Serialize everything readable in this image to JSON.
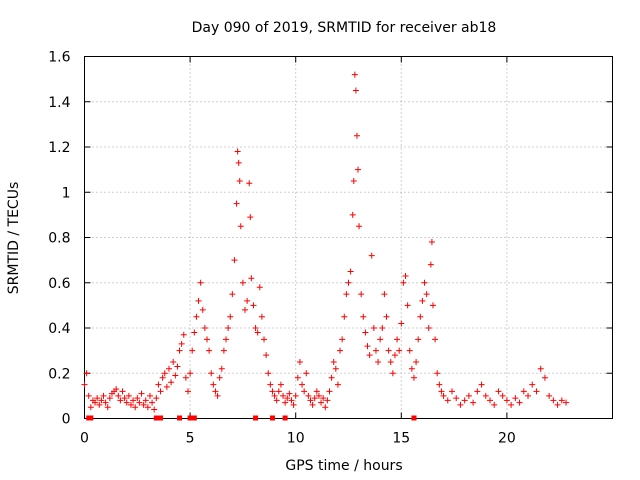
{
  "chart_data": {
    "type": "scatter",
    "title": "Day 090 of 2019, SRMTID for receiver ab18",
    "xlabel": "GPS time / hours",
    "ylabel": "SRMTID / TECUs",
    "xlim": [
      0,
      25
    ],
    "ylim": [
      0,
      1.6
    ],
    "grid": true,
    "marker": "+",
    "color": "#ff0000",
    "x_ticks": [
      0,
      5,
      10,
      15,
      20
    ],
    "x_tick_labels": [
      "0",
      "5",
      "10",
      "15",
      "20"
    ],
    "y_ticks": [
      0,
      0.2,
      0.4,
      0.6,
      0.8,
      1.0,
      1.2,
      1.4,
      1.6
    ],
    "y_tick_labels": [
      "0",
      "0.2",
      "0.4",
      "0.6",
      "0.8",
      "1",
      "1.2",
      "1.4",
      "1.6"
    ],
    "series": [
      {
        "name": "SRMTID",
        "points": [
          [
            0.0,
            0.15
          ],
          [
            0.1,
            0.2
          ],
          [
            0.2,
            0.1
          ],
          [
            0.3,
            0.05
          ],
          [
            0.4,
            0.08
          ],
          [
            0.5,
            0.07
          ],
          [
            0.6,
            0.09
          ],
          [
            0.7,
            0.06
          ],
          [
            0.8,
            0.08
          ],
          [
            0.9,
            0.1
          ],
          [
            1.0,
            0.07
          ],
          [
            1.1,
            0.05
          ],
          [
            1.2,
            0.09
          ],
          [
            1.3,
            0.11
          ],
          [
            1.4,
            0.12
          ],
          [
            1.5,
            0.13
          ],
          [
            1.6,
            0.1
          ],
          [
            1.7,
            0.08
          ],
          [
            1.8,
            0.12
          ],
          [
            1.9,
            0.09
          ],
          [
            2.0,
            0.07
          ],
          [
            2.1,
            0.1
          ],
          [
            2.2,
            0.06
          ],
          [
            2.3,
            0.08
          ],
          [
            2.4,
            0.05
          ],
          [
            2.5,
            0.09
          ],
          [
            2.6,
            0.07
          ],
          [
            2.7,
            0.11
          ],
          [
            2.8,
            0.06
          ],
          [
            2.9,
            0.08
          ],
          [
            3.0,
            0.05
          ],
          [
            3.1,
            0.1
          ],
          [
            3.2,
            0.07
          ],
          [
            3.3,
            0.04
          ],
          [
            3.4,
            0.09
          ],
          [
            3.5,
            0.15
          ],
          [
            3.6,
            0.12
          ],
          [
            3.7,
            0.18
          ],
          [
            3.8,
            0.2
          ],
          [
            3.9,
            0.14
          ],
          [
            4.0,
            0.22
          ],
          [
            4.1,
            0.16
          ],
          [
            4.2,
            0.25
          ],
          [
            4.3,
            0.19
          ],
          [
            4.4,
            0.23
          ],
          [
            4.5,
            0.3
          ],
          [
            4.6,
            0.33
          ],
          [
            4.7,
            0.37
          ],
          [
            4.8,
            0.18
          ],
          [
            4.9,
            0.12
          ],
          [
            5.0,
            0.2
          ],
          [
            5.1,
            0.3
          ],
          [
            5.2,
            0.38
          ],
          [
            5.3,
            0.45
          ],
          [
            5.4,
            0.52
          ],
          [
            5.5,
            0.6
          ],
          [
            5.6,
            0.48
          ],
          [
            5.7,
            0.4
          ],
          [
            5.8,
            0.35
          ],
          [
            5.9,
            0.3
          ],
          [
            6.0,
            0.2
          ],
          [
            6.1,
            0.15
          ],
          [
            6.2,
            0.12
          ],
          [
            6.3,
            0.1
          ],
          [
            6.4,
            0.18
          ],
          [
            6.5,
            0.22
          ],
          [
            6.6,
            0.3
          ],
          [
            6.7,
            0.35
          ],
          [
            6.8,
            0.4
          ],
          [
            6.9,
            0.45
          ],
          [
            7.0,
            0.55
          ],
          [
            7.1,
            0.7
          ],
          [
            7.2,
            0.95
          ],
          [
            7.25,
            1.18
          ],
          [
            7.3,
            1.13
          ],
          [
            7.35,
            1.05
          ],
          [
            7.4,
            0.85
          ],
          [
            7.5,
            0.6
          ],
          [
            7.6,
            0.48
          ],
          [
            7.7,
            0.52
          ],
          [
            7.8,
            1.04
          ],
          [
            7.85,
            0.89
          ],
          [
            7.9,
            0.62
          ],
          [
            8.0,
            0.5
          ],
          [
            8.1,
            0.4
          ],
          [
            8.2,
            0.38
          ],
          [
            8.3,
            0.58
          ],
          [
            8.4,
            0.45
          ],
          [
            8.5,
            0.35
          ],
          [
            8.6,
            0.28
          ],
          [
            8.7,
            0.2
          ],
          [
            8.8,
            0.15
          ],
          [
            8.9,
            0.12
          ],
          [
            9.0,
            0.1
          ],
          [
            9.1,
            0.08
          ],
          [
            9.2,
            0.12
          ],
          [
            9.3,
            0.15
          ],
          [
            9.4,
            0.1
          ],
          [
            9.5,
            0.07
          ],
          [
            9.6,
            0.09
          ],
          [
            9.7,
            0.11
          ],
          [
            9.8,
            0.08
          ],
          [
            9.9,
            0.06
          ],
          [
            10.0,
            0.1
          ],
          [
            10.1,
            0.18
          ],
          [
            10.2,
            0.25
          ],
          [
            10.3,
            0.15
          ],
          [
            10.4,
            0.12
          ],
          [
            10.5,
            0.2
          ],
          [
            10.6,
            0.1
          ],
          [
            10.7,
            0.08
          ],
          [
            10.8,
            0.06
          ],
          [
            10.9,
            0.09
          ],
          [
            11.0,
            0.12
          ],
          [
            11.1,
            0.1
          ],
          [
            11.2,
            0.07
          ],
          [
            11.3,
            0.09
          ],
          [
            11.4,
            0.05
          ],
          [
            11.5,
            0.08
          ],
          [
            11.6,
            0.12
          ],
          [
            11.7,
            0.18
          ],
          [
            11.8,
            0.25
          ],
          [
            11.9,
            0.22
          ],
          [
            12.0,
            0.15
          ],
          [
            12.1,
            0.3
          ],
          [
            12.2,
            0.35
          ],
          [
            12.3,
            0.45
          ],
          [
            12.4,
            0.55
          ],
          [
            12.5,
            0.6
          ],
          [
            12.6,
            0.65
          ],
          [
            12.7,
            0.9
          ],
          [
            12.75,
            1.05
          ],
          [
            12.8,
            1.52
          ],
          [
            12.85,
            1.45
          ],
          [
            12.9,
            1.25
          ],
          [
            12.95,
            1.1
          ],
          [
            13.0,
            0.85
          ],
          [
            13.1,
            0.55
          ],
          [
            13.2,
            0.45
          ],
          [
            13.3,
            0.38
          ],
          [
            13.4,
            0.32
          ],
          [
            13.5,
            0.28
          ],
          [
            13.6,
            0.72
          ],
          [
            13.7,
            0.4
          ],
          [
            13.8,
            0.3
          ],
          [
            13.9,
            0.25
          ],
          [
            14.0,
            0.35
          ],
          [
            14.1,
            0.4
          ],
          [
            14.2,
            0.55
          ],
          [
            14.3,
            0.45
          ],
          [
            14.4,
            0.3
          ],
          [
            14.5,
            0.25
          ],
          [
            14.6,
            0.2
          ],
          [
            14.7,
            0.28
          ],
          [
            14.8,
            0.35
          ],
          [
            14.9,
            0.3
          ],
          [
            15.0,
            0.42
          ],
          [
            15.1,
            0.6
          ],
          [
            15.2,
            0.63
          ],
          [
            15.3,
            0.5
          ],
          [
            15.4,
            0.3
          ],
          [
            15.5,
            0.22
          ],
          [
            15.6,
            0.18
          ],
          [
            15.7,
            0.25
          ],
          [
            15.8,
            0.35
          ],
          [
            15.9,
            0.45
          ],
          [
            16.0,
            0.52
          ],
          [
            16.1,
            0.6
          ],
          [
            16.2,
            0.55
          ],
          [
            16.3,
            0.4
          ],
          [
            16.4,
            0.68
          ],
          [
            16.45,
            0.78
          ],
          [
            16.5,
            0.5
          ],
          [
            16.6,
            0.35
          ],
          [
            16.7,
            0.2
          ],
          [
            16.8,
            0.15
          ],
          [
            16.9,
            0.12
          ],
          [
            17.0,
            0.1
          ],
          [
            17.2,
            0.08
          ],
          [
            17.4,
            0.12
          ],
          [
            17.6,
            0.09
          ],
          [
            17.8,
            0.06
          ],
          [
            18.0,
            0.08
          ],
          [
            18.2,
            0.1
          ],
          [
            18.4,
            0.07
          ],
          [
            18.6,
            0.12
          ],
          [
            18.8,
            0.15
          ],
          [
            19.0,
            0.1
          ],
          [
            19.2,
            0.08
          ],
          [
            19.4,
            0.06
          ],
          [
            19.6,
            0.12
          ],
          [
            19.8,
            0.1
          ],
          [
            20.0,
            0.08
          ],
          [
            20.2,
            0.06
          ],
          [
            20.4,
            0.09
          ],
          [
            20.6,
            0.07
          ],
          [
            20.8,
            0.12
          ],
          [
            21.0,
            0.1
          ],
          [
            21.2,
            0.15
          ],
          [
            21.4,
            0.12
          ],
          [
            21.6,
            0.22
          ],
          [
            21.8,
            0.18
          ],
          [
            22.0,
            0.1
          ],
          [
            22.2,
            0.08
          ],
          [
            22.4,
            0.06
          ],
          [
            22.6,
            0.08
          ],
          [
            22.8,
            0.07
          ]
        ]
      }
    ],
    "flags_at_zero": [
      0.2,
      0.3,
      3.4,
      3.5,
      3.6,
      4.5,
      5.0,
      5.1,
      5.2,
      8.1,
      8.9,
      9.5,
      15.6
    ]
  }
}
